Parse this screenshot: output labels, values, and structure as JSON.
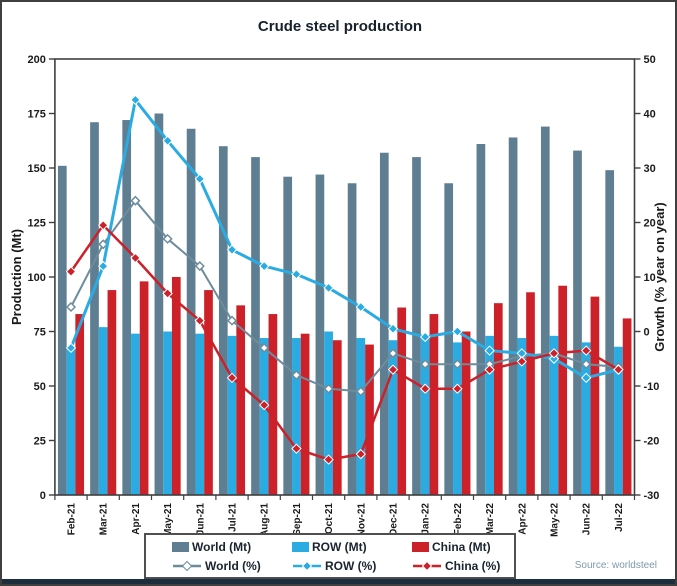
{
  "title": "Crude steel production",
  "source": "Source: worldsteel",
  "left_axis": {
    "label": "Production (Mt)",
    "min": 0,
    "max": 200,
    "step": 25,
    "ticks": [
      "0",
      "25",
      "50",
      "75",
      "100",
      "125",
      "150",
      "175",
      "200"
    ]
  },
  "right_axis": {
    "label": "Growth (% year on year)",
    "min": -30,
    "max": 50,
    "step": 10,
    "ticks": [
      "-30",
      "-20",
      "-10",
      "0",
      "10",
      "20",
      "30",
      "40",
      "50"
    ]
  },
  "colors": {
    "world_bar": "#5f7e91",
    "row_bar": "#2aabe2",
    "china_bar": "#cc2129",
    "world_line": "#6d8c9c",
    "row_line": "#2aabe2",
    "china_line": "#cc2129",
    "frame": "#3f3f3f",
    "title_text": "#17212b",
    "axis_text": "#1a1a1a",
    "source_text": "#7d9aab",
    "bottom_strip": "#1d2f3f"
  },
  "legend": {
    "items": [
      {
        "label": "World (Mt)",
        "type": "bar",
        "color": "#5f7e91",
        "marker_fill": "#5f7e91"
      },
      {
        "label": "ROW (Mt)",
        "type": "bar",
        "color": "#2aabe2",
        "marker_fill": "#2aabe2"
      },
      {
        "label": "China (Mt)",
        "type": "bar",
        "color": "#cc2129",
        "marker_fill": "#cc2129"
      },
      {
        "label": "World (%)",
        "type": "line",
        "color": "#6d8c9c",
        "marker_fill": "#ffffff"
      },
      {
        "label": "ROW (%)",
        "type": "line",
        "color": "#2aabe2",
        "marker_fill": "#2aabe2"
      },
      {
        "label": "China (%)",
        "type": "line",
        "color": "#cc2129",
        "marker_fill": "#cc2129"
      }
    ]
  },
  "chart_data": {
    "type": "bar",
    "subtype": "grouped bars with overlaid lines on secondary axis",
    "categories": [
      "Feb-21",
      "Mar-21",
      "Apr-21",
      "May-21",
      "Jun-21",
      "Jul-21",
      "Aug-21",
      "Sep-21",
      "Oct-21",
      "Nov-21",
      "Dec-21",
      "Jan-22",
      "Feb-22",
      "Mar-22",
      "Apr-22",
      "May-22",
      "Jun-22",
      "Jul-22"
    ],
    "title": "Crude steel production",
    "xlabel": "",
    "ylabel_left": "Production (Mt)",
    "ylabel_right": "Growth (% year on year)",
    "left_ylim": [
      0,
      200
    ],
    "right_ylim": [
      -30,
      50
    ],
    "grid": false,
    "legend_position": "bottom",
    "bar_series": [
      {
        "name": "World (Mt)",
        "axis": "left",
        "color": "#5f7e91",
        "values": [
          151,
          171,
          172,
          175,
          168,
          160,
          155,
          146,
          147,
          143,
          157,
          155,
          143,
          161,
          164,
          169,
          158,
          149
        ]
      },
      {
        "name": "ROW (Mt)",
        "axis": "left",
        "color": "#2aabe2",
        "values": [
          68,
          77,
          74,
          75,
          74,
          73,
          72,
          72,
          75,
          72,
          71,
          73,
          70,
          73,
          72,
          73,
          70,
          68
        ]
      },
      {
        "name": "China (Mt)",
        "axis": "left",
        "color": "#cc2129",
        "values": [
          83,
          94,
          98,
          100,
          94,
          87,
          83,
          74,
          71,
          69,
          86,
          83,
          75,
          88,
          93,
          96,
          91,
          81
        ]
      }
    ],
    "line_series": [
      {
        "name": "World (%)",
        "axis": "right",
        "color": "#6d8c9c",
        "marker": "open-diamond",
        "width": 2,
        "values": [
          4.5,
          16,
          24,
          17,
          12,
          2,
          -3,
          -8,
          -10.5,
          -11,
          -4,
          -6,
          -6,
          -6,
          -4.5,
          -4,
          -6,
          -6.5
        ]
      },
      {
        "name": "ROW (%)",
        "axis": "right",
        "color": "#2aabe2",
        "marker": "diamond",
        "width": 3,
        "values": [
          -3,
          12,
          42.5,
          35,
          28,
          15,
          12,
          10.5,
          8,
          4.5,
          0.5,
          -1,
          0,
          -3.5,
          -4,
          -5,
          -8.5,
          -7
        ]
      },
      {
        "name": "China (%)",
        "axis": "right",
        "color": "#cc2129",
        "marker": "diamond",
        "width": 2.5,
        "values": [
          11,
          19.5,
          13.5,
          7,
          2,
          -8.5,
          -13.5,
          -21.5,
          -23.5,
          -22.5,
          -7,
          -10.5,
          -10.5,
          -7,
          -5.5,
          -4,
          -3.5,
          -7
        ]
      }
    ]
  }
}
